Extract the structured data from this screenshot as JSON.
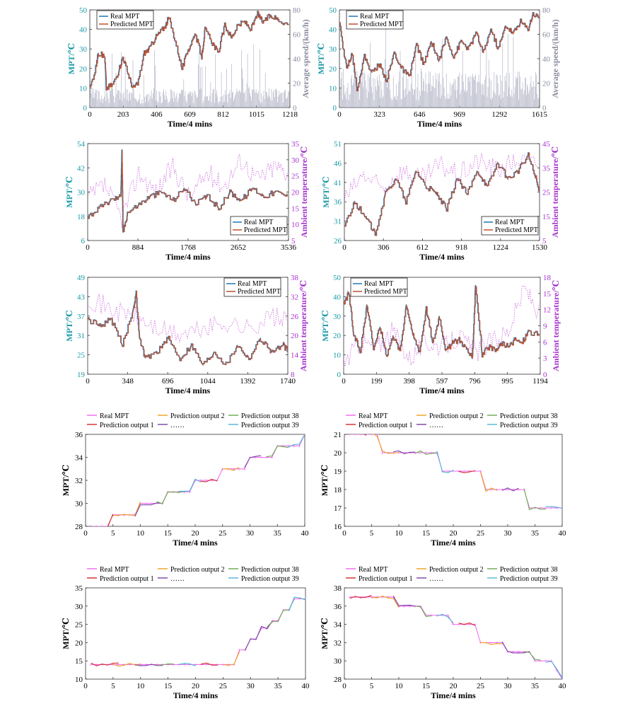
{
  "colors": {
    "real_mpt": "#1f77b4",
    "predicted_mpt": "#c0502d",
    "speed": "#a8aabf",
    "ambient": "#cc66dd",
    "teal_axis": "#1a9aa6",
    "purple_axis": "#a633cc",
    "pred1": "#d62728",
    "pred2": "#f0a020",
    "pred38": "#6aa84f",
    "dots": "#7b3fa6",
    "pred39": "#4fb3d9",
    "real_pink": "#ee66ee"
  },
  "chart_data": [
    {
      "id": "p1",
      "type": "line",
      "xlabel": "Time/4 mins",
      "ylabel": "MPT/℃",
      "y2label": "Average speed/(km/h)",
      "xticks": [
        "0",
        "203",
        "406",
        "609",
        "812",
        "1015",
        "1218"
      ],
      "xlim": [
        0,
        1218
      ],
      "ylim": [
        0,
        50
      ],
      "yticks": [
        "0",
        "10",
        "20",
        "30",
        "40",
        "50"
      ],
      "y2lim": [
        0,
        80
      ],
      "y2ticks": [
        "0",
        "20",
        "40",
        "60",
        "80"
      ],
      "legend": [
        "Real MPT",
        "Predicted MPT"
      ],
      "legend_position": "top-left",
      "series": [
        {
          "name": "Real MPT",
          "x": [
            0,
            40,
            50,
            90,
            100,
            140,
            180,
            200,
            230,
            260,
            290,
            330,
            360,
            400,
            420,
            460,
            480,
            520,
            560,
            600,
            640,
            680,
            700,
            740,
            780,
            820,
            860,
            900,
            940,
            980,
            1020,
            1050,
            1100,
            1150,
            1218
          ],
          "y": [
            10,
            22,
            28,
            26,
            10,
            12,
            20,
            26,
            18,
            10,
            12,
            28,
            30,
            36,
            38,
            42,
            46,
            34,
            20,
            30,
            38,
            26,
            40,
            34,
            28,
            42,
            36,
            42,
            44,
            40,
            48,
            44,
            47,
            45,
            42
          ]
        },
        {
          "name": "Average speed",
          "axis": "right",
          "x": [
            0,
            1218
          ],
          "y": [
            8,
            8
          ]
        }
      ]
    },
    {
      "id": "p2",
      "type": "line",
      "xlabel": "Time/4 mins",
      "ylabel": "MPT/℃",
      "y2label": "Average speed/(km/h)",
      "xticks": [
        "0",
        "323",
        "646",
        "969",
        "1292",
        "1615"
      ],
      "xlim": [
        0,
        1615
      ],
      "ylim": [
        0,
        50
      ],
      "yticks": [
        "0",
        "10",
        "20",
        "30",
        "40",
        "50"
      ],
      "y2lim": [
        0,
        80
      ],
      "y2ticks": [
        "0",
        "20",
        "40",
        "60",
        "80"
      ],
      "legend": [
        "Real MPT",
        "Predicted MPT"
      ],
      "legend_position": "top-left",
      "series": [
        {
          "name": "Real MPT",
          "x": [
            0,
            30,
            60,
            100,
            140,
            200,
            260,
            320,
            380,
            440,
            500,
            560,
            620,
            680,
            740,
            800,
            860,
            920,
            980,
            1040,
            1100,
            1160,
            1220,
            1280,
            1340,
            1400,
            1460,
            1520,
            1560,
            1615
          ],
          "y": [
            44,
            30,
            20,
            28,
            10,
            26,
            18,
            22,
            14,
            28,
            20,
            16,
            32,
            22,
            34,
            24,
            36,
            26,
            34,
            30,
            38,
            28,
            40,
            30,
            42,
            38,
            44,
            40,
            48,
            46
          ]
        },
        {
          "name": "Average speed",
          "axis": "right",
          "x": [
            0,
            1615
          ],
          "y": [
            15,
            15
          ]
        }
      ]
    },
    {
      "id": "p3",
      "type": "line",
      "xlabel": "Time/4 mins",
      "ylabel": "MPT/℃",
      "y2label": "Ambient temperature/℃",
      "xticks": [
        "0",
        "884",
        "1768",
        "2652",
        "3536"
      ],
      "xlim": [
        0,
        3536
      ],
      "ylim": [
        6,
        54
      ],
      "yticks": [
        "6",
        "18",
        "30",
        "42",
        "54"
      ],
      "y2lim": [
        5,
        35
      ],
      "y2ticks": [
        "5",
        "10",
        "15",
        "20",
        "25",
        "30",
        "35"
      ],
      "legend": [
        "Real MPT",
        "Predicted MPT"
      ],
      "legend_position": "bottom-right",
      "series": [
        {
          "name": "Real MPT",
          "x": [
            0,
            200,
            400,
            580,
            600,
            620,
            700,
            900,
            1100,
            1300,
            1500,
            1700,
            1900,
            2100,
            2300,
            2500,
            2700,
            2900,
            3100,
            3300,
            3536
          ],
          "y": [
            18,
            22,
            26,
            28,
            50,
            10,
            20,
            24,
            28,
            30,
            26,
            32,
            24,
            28,
            22,
            30,
            26,
            32,
            28,
            30,
            28
          ]
        },
        {
          "name": "Ambient temperature",
          "axis": "right",
          "x": [
            0,
            300,
            600,
            900,
            1200,
            1500,
            1800,
            2100,
            2400,
            2700,
            3000,
            3300,
            3536
          ],
          "y": [
            18,
            22,
            12,
            26,
            20,
            28,
            18,
            26,
            22,
            30,
            24,
            28,
            26
          ]
        }
      ]
    },
    {
      "id": "p4",
      "type": "line",
      "xlabel": "Time/4 mins",
      "ylabel": "MPT/℃",
      "y2label": "Ambient temperature/℃",
      "xticks": [
        "0",
        "306",
        "612",
        "918",
        "1224",
        "1530"
      ],
      "xlim": [
        0,
        1530
      ],
      "ylim": [
        26,
        51
      ],
      "yticks": [
        "26",
        "31",
        "36",
        "41",
        "46",
        "51"
      ],
      "y2lim": [
        5,
        45
      ],
      "y2ticks": [
        "5",
        "15",
        "25",
        "35",
        "45"
      ],
      "legend": [
        "Real MPT",
        "Predicted MPT"
      ],
      "legend_position": "bottom-right",
      "series": [
        {
          "name": "Real MPT",
          "x": [
            0,
            80,
            160,
            240,
            320,
            400,
            480,
            560,
            640,
            720,
            800,
            880,
            960,
            1040,
            1120,
            1200,
            1280,
            1360,
            1440,
            1500,
            1530
          ],
          "y": [
            30,
            36,
            32,
            28,
            38,
            42,
            36,
            44,
            40,
            38,
            34,
            42,
            38,
            44,
            40,
            46,
            42,
            44,
            48,
            42,
            38
          ]
        },
        {
          "name": "Ambient temperature",
          "axis": "right",
          "x": [
            0,
            150,
            300,
            450,
            600,
            750,
            900,
            1050,
            1200,
            1350,
            1530
          ],
          "y": [
            22,
            32,
            26,
            34,
            30,
            36,
            32,
            38,
            34,
            38,
            36
          ]
        }
      ]
    },
    {
      "id": "p5",
      "type": "line",
      "xlabel": "Time/4 mins",
      "ylabel": "MPT/℃",
      "y2label": "Ambient temperature/℃",
      "xticks": [
        "0",
        "348",
        "696",
        "1044",
        "1392",
        "1740"
      ],
      "xlim": [
        0,
        1740
      ],
      "ylim": [
        19,
        49
      ],
      "yticks": [
        "19",
        "25",
        "31",
        "37",
        "43",
        "49"
      ],
      "y2lim": [
        8,
        38
      ],
      "y2ticks": [
        "8",
        "14",
        "20",
        "26",
        "32",
        "38"
      ],
      "legend": [
        "Real MPT",
        "Predicted MPT"
      ],
      "legend_position": "top-right",
      "series": [
        {
          "name": "Real MPT",
          "x": [
            0,
            100,
            200,
            300,
            400,
            420,
            450,
            500,
            600,
            700,
            800,
            900,
            1000,
            1100,
            1200,
            1300,
            1400,
            1500,
            1600,
            1700,
            1740
          ],
          "y": [
            36,
            34,
            36,
            28,
            40,
            44,
            30,
            24,
            26,
            30,
            24,
            28,
            22,
            26,
            22,
            28,
            24,
            30,
            26,
            28,
            26
          ]
        },
        {
          "name": "Ambient temperature",
          "axis": "right",
          "x": [
            0,
            200,
            400,
            600,
            800,
            1000,
            1200,
            1400,
            1600,
            1740
          ],
          "y": [
            32,
            28,
            26,
            22,
            20,
            22,
            24,
            22,
            26,
            24
          ]
        }
      ]
    },
    {
      "id": "p6",
      "type": "line",
      "xlabel": "Time/4 mins",
      "ylabel": "MPT/℃",
      "y2label": "Ambient temperature/℃",
      "xticks": [
        "0",
        "199",
        "398",
        "597",
        "796",
        "995",
        "1194"
      ],
      "xlim": [
        0,
        1194
      ],
      "ylim": [
        0,
        50
      ],
      "yticks": [
        "0",
        "10",
        "20",
        "30",
        "40",
        "50"
      ],
      "y2lim": [
        0,
        18
      ],
      "y2ticks": [
        "0",
        "3",
        "6",
        "9",
        "12",
        "15",
        "18"
      ],
      "legend": [
        "Real MPT",
        "Predicted MPT"
      ],
      "legend_position": "top-left",
      "series": [
        {
          "name": "Real MPT",
          "x": [
            0,
            30,
            60,
            100,
            140,
            180,
            220,
            260,
            300,
            340,
            380,
            420,
            460,
            500,
            540,
            580,
            620,
            660,
            700,
            740,
            780,
            800,
            840,
            880,
            920,
            960,
            1000,
            1040,
            1080,
            1120,
            1194
          ],
          "y": [
            36,
            42,
            20,
            12,
            36,
            14,
            24,
            10,
            20,
            12,
            36,
            20,
            12,
            34,
            16,
            30,
            12,
            16,
            18,
            14,
            8,
            46,
            10,
            14,
            12,
            16,
            14,
            18,
            16,
            22,
            20
          ]
        },
        {
          "name": "Ambient temperature",
          "axis": "right",
          "x": [
            0,
            100,
            200,
            300,
            400,
            500,
            600,
            700,
            800,
            900,
            1000,
            1100,
            1194
          ],
          "y": [
            2,
            6,
            5,
            8,
            3,
            6,
            5,
            7,
            4,
            6,
            8,
            16,
            11
          ]
        }
      ]
    },
    {
      "id": "p7",
      "type": "line",
      "xlabel": "Time/4 mins",
      "ylabel": "MPT/℃",
      "xticks": [
        "0",
        "5",
        "10",
        "15",
        "20",
        "25",
        "30",
        "35",
        "40"
      ],
      "xlim": [
        0,
        40
      ],
      "ylim": [
        28,
        36
      ],
      "yticks": [
        "28",
        "30",
        "32",
        "34",
        "36"
      ],
      "legend": [
        "Real MPT",
        "Prediction output 1",
        "Prediction output 2",
        "……",
        "Prediction output 38",
        "Prediction output 39"
      ],
      "legend_position": "top",
      "series": [
        {
          "name": "Real MPT",
          "x": [
            1,
            4,
            5,
            9,
            10,
            14,
            15,
            19,
            20,
            24,
            25,
            29,
            30,
            34,
            35,
            38,
            40
          ],
          "y": [
            28,
            28,
            29,
            29,
            30,
            30,
            31,
            31,
            32,
            32,
            33,
            33,
            34,
            34,
            35,
            35,
            36
          ]
        }
      ]
    },
    {
      "id": "p8",
      "type": "line",
      "xlabel": "Time/4 mins",
      "ylabel": "MPT/℃",
      "xticks": [
        "0",
        "5",
        "10",
        "15",
        "20",
        "25",
        "30",
        "35",
        "40"
      ],
      "xlim": [
        0,
        40
      ],
      "ylim": [
        16,
        21
      ],
      "yticks": [
        "16",
        "17",
        "18",
        "19",
        "20",
        "21"
      ],
      "legend": [
        "Real MPT",
        "Prediction output 1",
        "Prediction output 2",
        "……",
        "Prediction output 38",
        "Prediction output 39"
      ],
      "legend_position": "top",
      "series": [
        {
          "name": "Real MPT",
          "x": [
            1,
            6,
            7,
            17,
            18,
            25,
            26,
            33,
            34,
            40
          ],
          "y": [
            21,
            21,
            20,
            20,
            19,
            19,
            18,
            18,
            17,
            17
          ]
        }
      ]
    },
    {
      "id": "p9",
      "type": "line",
      "xlabel": "Time/4 mins",
      "ylabel": "MPT/℃",
      "xticks": [
        "0",
        "5",
        "10",
        "15",
        "20",
        "25",
        "30",
        "35",
        "40"
      ],
      "xlim": [
        0,
        40
      ],
      "ylim": [
        10,
        35
      ],
      "yticks": [
        "10",
        "15",
        "20",
        "25",
        "30",
        "35"
      ],
      "legend": [
        "Real MPT",
        "Prediction output 1",
        "Prediction output 2",
        "……",
        "Prediction output 38",
        "Prediction output 39"
      ],
      "legend_position": "top",
      "series": [
        {
          "name": "Real MPT",
          "x": [
            1,
            10,
            20,
            26,
            28,
            30,
            32,
            34,
            36,
            38,
            40
          ],
          "y": [
            14,
            14,
            14,
            14,
            18,
            21,
            24,
            26,
            29,
            32,
            32
          ]
        }
      ]
    },
    {
      "id": "p10",
      "type": "line",
      "xlabel": "Time/4 mins",
      "ylabel": "MPT/℃",
      "xticks": [
        "0",
        "5",
        "10",
        "15",
        "20",
        "25",
        "30",
        "35",
        "40"
      ],
      "xlim": [
        0,
        40
      ],
      "ylim": [
        28,
        38
      ],
      "yticks": [
        "28",
        "30",
        "32",
        "34",
        "36",
        "38"
      ],
      "legend": [
        "Real MPT",
        "Prediction output 1",
        "Prediction output 2",
        "……",
        "Prediction output 38",
        "Prediction output 39"
      ],
      "legend_position": "top",
      "series": [
        {
          "name": "Real MPT",
          "x": [
            1,
            5,
            10,
            15,
            20,
            25,
            30,
            35,
            39,
            40
          ],
          "y": [
            37,
            37,
            36,
            35,
            34,
            32,
            31,
            30,
            29,
            28
          ]
        }
      ]
    }
  ]
}
